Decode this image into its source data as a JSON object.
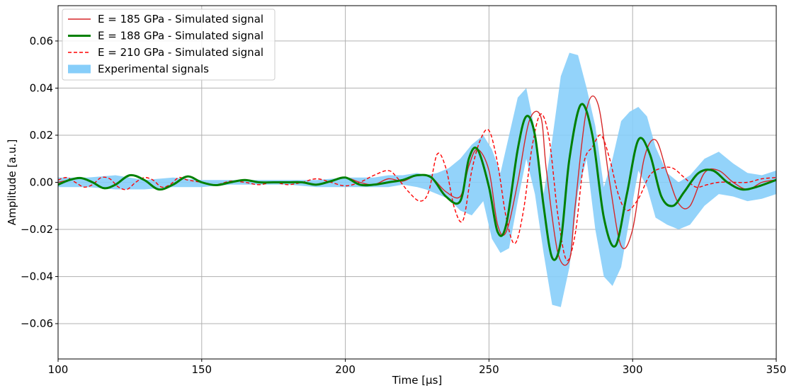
{
  "chart_data": {
    "type": "line",
    "title": "",
    "xlabel": "Time [μs]",
    "ylabel": "Amplitude [a.u.]",
    "xlim": [
      100,
      350
    ],
    "ylim": [
      -0.075,
      0.075
    ],
    "xticks": [
      100,
      150,
      200,
      250,
      300,
      350
    ],
    "yticks": [
      -0.06,
      -0.04,
      -0.02,
      0.0,
      0.02,
      0.04,
      0.06
    ],
    "xtick_labels": [
      "100",
      "150",
      "200",
      "250",
      "300",
      "350"
    ],
    "ytick_labels": [
      "−0.06",
      "−0.04",
      "−0.02",
      "0.00",
      "0.02",
      "0.04",
      "0.06"
    ],
    "grid": true,
    "legend_position": "top-left",
    "series": [
      {
        "name": "E = 185 GPa - Simulated signal",
        "color": "#d62728",
        "style": "solid",
        "x": [
          100,
          104,
          108,
          112,
          116,
          120,
          125,
          130,
          135,
          140,
          145,
          150,
          155,
          160,
          165,
          170,
          175,
          180,
          185,
          190,
          195,
          200,
          205,
          210,
          215,
          220,
          225,
          230,
          235,
          240,
          243,
          246,
          250,
          253,
          256,
          260,
          264,
          268,
          270,
          274,
          278,
          280,
          284,
          288,
          292,
          296,
          300,
          304,
          308,
          312,
          316,
          320,
          325,
          330,
          335,
          340,
          345,
          350
        ],
        "y": [
          0.0,
          0.001,
          0.0018,
          0.0,
          -0.0025,
          -0.001,
          0.003,
          0.001,
          -0.003,
          -0.001,
          0.0025,
          0.0,
          -0.0012,
          0.0,
          0.001,
          0.0,
          0.0,
          0.0,
          0.0,
          -0.001,
          0.0005,
          0.002,
          0.0,
          -0.001,
          0.0015,
          0.0005,
          0.003,
          0.002,
          -0.004,
          -0.006,
          0.007,
          0.014,
          0.005,
          -0.018,
          -0.021,
          0.0,
          0.026,
          0.028,
          0.005,
          -0.03,
          -0.033,
          -0.01,
          0.031,
          0.033,
          0.0,
          -0.027,
          -0.02,
          0.01,
          0.018,
          0.004,
          -0.009,
          -0.01,
          0.004,
          0.005,
          0.0,
          -0.003,
          0.0,
          0.001
        ]
      },
      {
        "name": "E = 188 GPa - Simulated signal",
        "color": "#008000",
        "style": "solid-thick",
        "x": [
          100,
          104,
          108,
          112,
          116,
          120,
          125,
          130,
          135,
          140,
          145,
          150,
          155,
          160,
          165,
          170,
          175,
          180,
          185,
          190,
          195,
          200,
          205,
          210,
          215,
          220,
          225,
          230,
          235,
          240,
          243,
          246,
          250,
          253,
          256,
          260,
          263,
          266,
          269,
          272,
          275,
          278,
          282,
          286,
          290,
          294,
          298,
          302,
          306,
          310,
          314,
          318,
          323,
          328,
          333,
          338,
          343,
          350
        ],
        "y": [
          -0.001,
          0.001,
          0.0018,
          0.0,
          -0.0025,
          -0.001,
          0.003,
          0.001,
          -0.003,
          -0.001,
          0.0025,
          0.0,
          -0.0012,
          0.0,
          0.001,
          0.0,
          0.0,
          0.0,
          0.0,
          -0.001,
          0.0005,
          0.002,
          -0.001,
          -0.001,
          0.0,
          0.001,
          0.003,
          0.002,
          -0.006,
          -0.008,
          0.01,
          0.014,
          -0.002,
          -0.021,
          -0.018,
          0.014,
          0.028,
          0.02,
          -0.01,
          -0.032,
          -0.025,
          0.01,
          0.033,
          0.02,
          -0.015,
          -0.027,
          -0.005,
          0.018,
          0.012,
          -0.006,
          -0.01,
          -0.004,
          0.004,
          0.005,
          0.0,
          -0.003,
          -0.002,
          0.001
        ]
      },
      {
        "name": "E = 210 GPa - Simulated signal",
        "color": "#ff0000",
        "style": "dashed",
        "x": [
          100,
          103,
          106,
          109,
          112,
          115,
          118,
          121,
          124,
          127,
          130,
          133,
          136,
          139,
          142,
          145,
          150,
          155,
          160,
          165,
          170,
          175,
          180,
          185,
          190,
          195,
          200,
          205,
          210,
          215,
          218,
          222,
          226,
          229,
          232,
          235,
          238,
          241,
          244,
          247,
          250,
          253,
          256,
          259,
          262,
          265,
          268,
          271,
          274,
          277,
          280,
          283,
          286,
          289,
          292,
          295,
          298,
          302,
          306,
          310,
          314,
          318,
          322,
          326,
          330,
          335,
          340,
          345,
          350
        ],
        "y": [
          0.001,
          0.002,
          0.0,
          -0.002,
          -0.001,
          0.002,
          0.0015,
          -0.002,
          -0.003,
          0.0,
          0.002,
          0.001,
          -0.002,
          -0.001,
          0.002,
          0.001,
          0.0,
          -0.001,
          0.0005,
          0.0,
          -0.001,
          0.0,
          -0.001,
          0.0,
          0.0015,
          0.0,
          -0.0015,
          0.0,
          0.003,
          0.005,
          0.002,
          -0.004,
          -0.008,
          -0.004,
          0.012,
          0.006,
          -0.011,
          -0.016,
          0.005,
          0.018,
          0.022,
          0.008,
          -0.015,
          -0.026,
          -0.012,
          0.015,
          0.029,
          0.018,
          -0.014,
          -0.033,
          -0.022,
          0.008,
          0.015,
          0.02,
          0.01,
          -0.005,
          -0.012,
          -0.007,
          0.003,
          0.006,
          0.006,
          0.002,
          -0.002,
          -0.001,
          0.0,
          0.0,
          0.0,
          0.0015,
          0.002
        ]
      }
    ],
    "band": {
      "name": "Experimental signals",
      "color": "#87cefa",
      "x": [
        100,
        110,
        120,
        130,
        140,
        150,
        160,
        170,
        180,
        190,
        200,
        210,
        215,
        220,
        225,
        228,
        232,
        236,
        240,
        244,
        248,
        251,
        254,
        257,
        260,
        263,
        266,
        269,
        272,
        275,
        278,
        281,
        284,
        287,
        290,
        293,
        296,
        299,
        302,
        305,
        308,
        312,
        316,
        320,
        325,
        330,
        335,
        340,
        345,
        350
      ],
      "upper": [
        0.002,
        0.002,
        0.003,
        0.001,
        0.002,
        0.001,
        0.001,
        0.001,
        0.001,
        0.001,
        0.002,
        0.002,
        0.003,
        0.003,
        0.004,
        0.003,
        0.004,
        0.006,
        0.01,
        0.016,
        0.02,
        0.014,
        0.004,
        0.02,
        0.036,
        0.04,
        0.022,
        -0.005,
        0.018,
        0.045,
        0.055,
        0.054,
        0.04,
        0.024,
        -0.002,
        0.01,
        0.026,
        0.03,
        0.032,
        0.028,
        0.015,
        0.004,
        0.0,
        0.003,
        0.01,
        0.013,
        0.008,
        0.004,
        0.003,
        0.005
      ],
      "lower": [
        -0.002,
        -0.002,
        -0.003,
        -0.003,
        -0.002,
        -0.002,
        -0.001,
        -0.001,
        -0.001,
        -0.002,
        -0.002,
        -0.002,
        -0.002,
        -0.001,
        -0.002,
        -0.003,
        -0.005,
        -0.007,
        -0.012,
        -0.014,
        -0.008,
        -0.024,
        -0.03,
        -0.028,
        -0.008,
        0.01,
        -0.005,
        -0.03,
        -0.052,
        -0.053,
        -0.036,
        -0.004,
        0.01,
        -0.02,
        -0.04,
        -0.044,
        -0.036,
        -0.015,
        0.005,
        -0.002,
        -0.015,
        -0.018,
        -0.02,
        -0.018,
        -0.01,
        -0.005,
        -0.006,
        -0.008,
        -0.007,
        -0.005
      ]
    }
  }
}
